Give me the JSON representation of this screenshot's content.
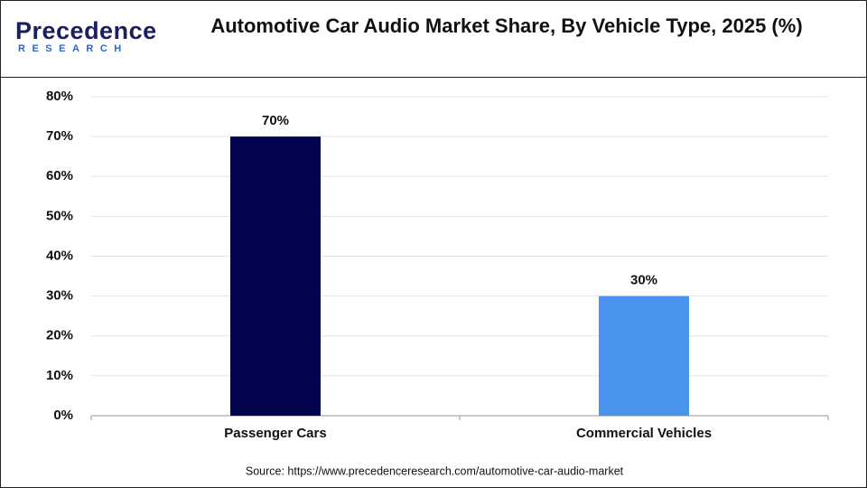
{
  "logo": {
    "name": "Precedence",
    "tagline": "RESEARCH"
  },
  "chart_data": {
    "type": "bar",
    "title": "Automotive Car Audio Market Share, By Vehicle Type, 2025 (%)",
    "categories": [
      "Passenger Cars",
      "Commercial Vehicles"
    ],
    "values": [
      70,
      30
    ],
    "value_labels": [
      "70%",
      "30%"
    ],
    "colors": [
      "#03044f",
      "#4a93ef"
    ],
    "ylim": [
      0,
      80
    ],
    "yticks": [
      {
        "value": 0,
        "label": "0%"
      },
      {
        "value": 10,
        "label": "10%"
      },
      {
        "value": 20,
        "label": "20%"
      },
      {
        "value": 30,
        "label": "30%"
      },
      {
        "value": 40,
        "label": "40%"
      },
      {
        "value": 50,
        "label": "50%"
      },
      {
        "value": 60,
        "label": "60%"
      },
      {
        "value": 70,
        "label": "70%"
      },
      {
        "value": 80,
        "label": "80%"
      }
    ],
    "grid": true,
    "source": "Source: https://www.precedenceresearch.com/automotive-car-audio-market"
  }
}
